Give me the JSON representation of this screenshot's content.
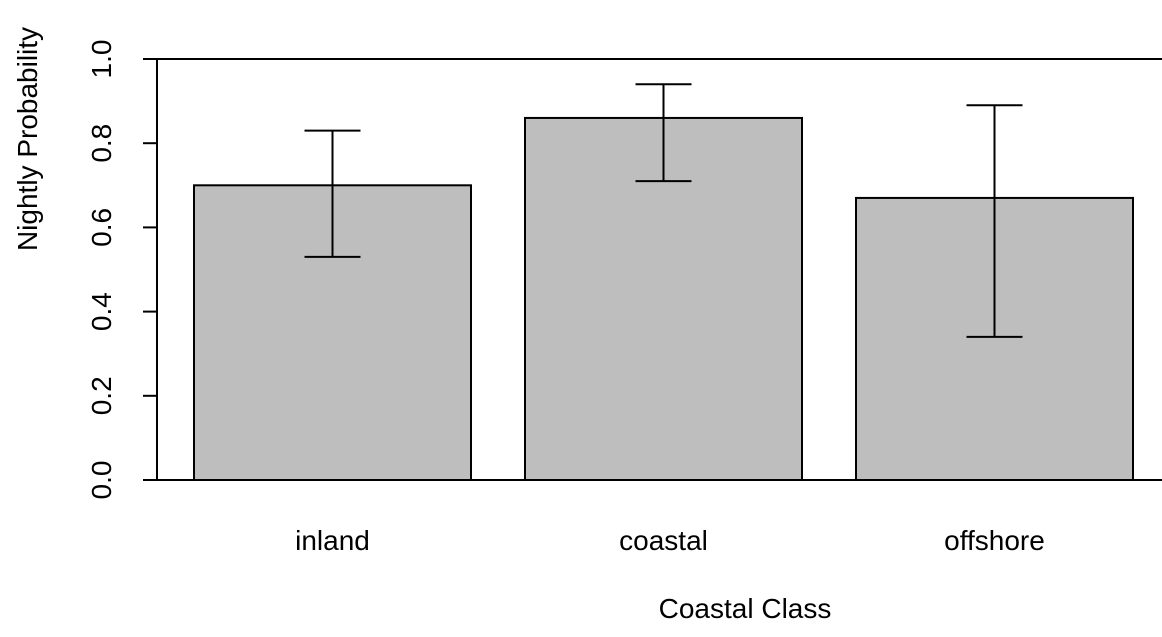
{
  "chart_data": {
    "type": "bar",
    "title": "",
    "xlabel": "Coastal Class",
    "ylabel": "Nightly Probability",
    "categories": [
      "inland",
      "coastal",
      "offshore"
    ],
    "values": [
      0.7,
      0.86,
      0.67
    ],
    "error_low": [
      0.53,
      0.71,
      0.34
    ],
    "error_high": [
      0.83,
      0.94,
      0.89
    ],
    "ylim": [
      0,
      1
    ],
    "yticks": [
      "0.0",
      "0.2",
      "0.4",
      "0.6",
      "0.8",
      "1.0"
    ],
    "grid": false,
    "bar_color": "#bebebe",
    "bar_edge_color": "#000000"
  }
}
